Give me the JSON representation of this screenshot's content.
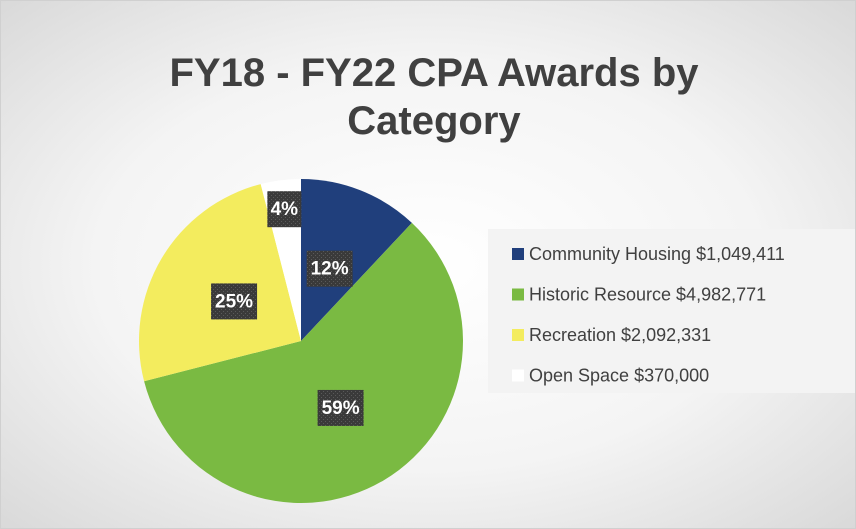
{
  "chart_data": {
    "type": "pie",
    "title": "FY18 - FY22 CPA Awards by Category",
    "categories": [
      "Community Housing $1,049,411",
      "Historic Resource $4,982,771",
      "Recreation $2,092,331",
      "Open Space $370,000"
    ],
    "values": [
      12,
      59,
      25,
      4
    ],
    "value_labels": [
      "12%",
      "59%",
      "25%",
      "4%"
    ],
    "colors": [
      "#203f7c",
      "#7aba42",
      "#f3ec5e",
      "#ffffff"
    ],
    "legend": "right"
  }
}
